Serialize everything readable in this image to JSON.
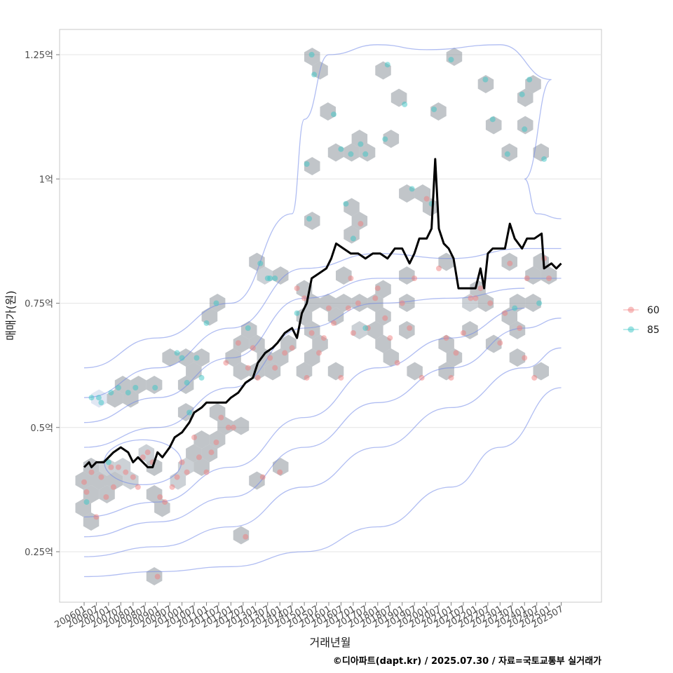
{
  "chart_data": {
    "type": "scatter",
    "xlabel": "거래년월",
    "ylabel": "매매가(원)",
    "caption": "©디아파트(dapt.kr) / 2025.07.30 / 자료=국토교통부 실거래가",
    "x_range": [
      2005.4,
      2026.5
    ],
    "y_unit": "억",
    "ylim": [
      0.15,
      1.35
    ],
    "y_ticks": [
      0.25,
      0.5,
      0.75,
      1.0,
      1.25
    ],
    "y_tick_labels": [
      "0.25억",
      "0.5억",
      "0.75억",
      "1억",
      "1.25억"
    ],
    "x_tick_labels": [
      "200601",
      "200607",
      "200701",
      "200707",
      "200801",
      "200807",
      "200901",
      "200907",
      "201001",
      "201007",
      "201101",
      "201107",
      "201201",
      "201207",
      "201301",
      "201307",
      "201401",
      "201407",
      "201501",
      "201507",
      "201601",
      "201607",
      "201701",
      "201707",
      "201801",
      "201807",
      "201901",
      "201907",
      "202001",
      "202007",
      "202101",
      "202107",
      "202201",
      "202207",
      "202301",
      "202307",
      "202401",
      "202407",
      "202501",
      "202507"
    ],
    "legend": {
      "placement": "right",
      "entries": [
        "60",
        "85"
      ]
    },
    "colors": {
      "60": "#f08080",
      "85": "#3cc6c6",
      "median_line": "#000000",
      "contour": "#6f86e8",
      "hexbin": "#8e969c"
    },
    "series": [
      {
        "name": "60",
        "points": [
          [
            2006.0,
            0.39
          ],
          [
            2006.1,
            0.37
          ],
          [
            2006.3,
            0.41
          ],
          [
            2006.5,
            0.32
          ],
          [
            2006.7,
            0.4
          ],
          [
            2006.9,
            0.36
          ],
          [
            2007.1,
            0.42
          ],
          [
            2007.2,
            0.38
          ],
          [
            2007.4,
            0.42
          ],
          [
            2007.7,
            0.41
          ],
          [
            2008.0,
            0.4
          ],
          [
            2008.2,
            0.38
          ],
          [
            2008.4,
            0.44
          ],
          [
            2008.6,
            0.45
          ],
          [
            2008.8,
            0.43
          ],
          [
            2009.0,
            0.2
          ],
          [
            2009.1,
            0.36
          ],
          [
            2009.3,
            0.35
          ],
          [
            2009.6,
            0.38
          ],
          [
            2009.8,
            0.4
          ],
          [
            2010.0,
            0.43
          ],
          [
            2010.2,
            0.41
          ],
          [
            2010.5,
            0.48
          ],
          [
            2010.7,
            0.44
          ],
          [
            2011.0,
            0.41
          ],
          [
            2011.2,
            0.45
          ],
          [
            2011.4,
            0.47
          ],
          [
            2011.6,
            0.52
          ],
          [
            2011.8,
            0.63
          ],
          [
            2011.9,
            0.5
          ],
          [
            2012.1,
            0.5
          ],
          [
            2012.3,
            0.67
          ],
          [
            2012.6,
            0.28
          ],
          [
            2012.7,
            0.62
          ],
          [
            2012.9,
            0.66
          ],
          [
            2013.1,
            0.6
          ],
          [
            2013.3,
            0.4
          ],
          [
            2013.6,
            0.64
          ],
          [
            2013.8,
            0.62
          ],
          [
            2014.0,
            0.41
          ],
          [
            2014.2,
            0.65
          ],
          [
            2014.5,
            0.66
          ],
          [
            2014.7,
            0.78
          ],
          [
            2015.0,
            0.76
          ],
          [
            2015.1,
            0.6
          ],
          [
            2015.3,
            0.69
          ],
          [
            2015.6,
            0.65
          ],
          [
            2015.8,
            0.68
          ],
          [
            2016.0,
            0.74
          ],
          [
            2016.2,
            0.71
          ],
          [
            2016.5,
            0.6
          ],
          [
            2016.8,
            0.74
          ],
          [
            2016.9,
            0.8
          ],
          [
            2017.0,
            0.69
          ],
          [
            2017.2,
            0.75
          ],
          [
            2017.3,
            0.91
          ],
          [
            2017.6,
            0.7
          ],
          [
            2017.9,
            0.76
          ],
          [
            2018.0,
            0.78
          ],
          [
            2018.3,
            0.72
          ],
          [
            2018.5,
            0.68
          ],
          [
            2018.8,
            0.63
          ],
          [
            2019.0,
            0.75
          ],
          [
            2019.3,
            0.7
          ],
          [
            2019.5,
            0.8
          ],
          [
            2019.8,
            0.6
          ],
          [
            2020.0,
            0.96
          ],
          [
            2020.5,
            0.82
          ],
          [
            2020.8,
            0.68
          ],
          [
            2021.0,
            0.6
          ],
          [
            2021.2,
            0.65
          ],
          [
            2021.5,
            0.69
          ],
          [
            2021.8,
            0.76
          ],
          [
            2022.0,
            0.76
          ],
          [
            2022.2,
            0.78
          ],
          [
            2022.6,
            0.75
          ],
          [
            2023.0,
            0.67
          ],
          [
            2023.2,
            0.73
          ],
          [
            2023.4,
            0.83
          ],
          [
            2023.8,
            0.7
          ],
          [
            2024.0,
            0.64
          ],
          [
            2024.1,
            0.8
          ],
          [
            2024.4,
            0.6
          ],
          [
            2024.8,
            0.84
          ],
          [
            2025.0,
            0.8
          ]
        ]
      },
      {
        "name": "85",
        "points": [
          [
            2006.1,
            0.35
          ],
          [
            2006.3,
            0.56
          ],
          [
            2006.6,
            0.56
          ],
          [
            2006.7,
            0.55
          ],
          [
            2007.0,
            0.43
          ],
          [
            2007.1,
            0.57
          ],
          [
            2007.4,
            0.58
          ],
          [
            2007.8,
            0.57
          ],
          [
            2008.1,
            0.58
          ],
          [
            2008.9,
            0.58
          ],
          [
            2009.8,
            0.65
          ],
          [
            2010.0,
            0.64
          ],
          [
            2010.2,
            0.59
          ],
          [
            2010.3,
            0.53
          ],
          [
            2010.6,
            0.64
          ],
          [
            2010.8,
            0.6
          ],
          [
            2011.0,
            0.71
          ],
          [
            2011.4,
            0.75
          ],
          [
            2012.7,
            0.7
          ],
          [
            2013.2,
            0.83
          ],
          [
            2013.5,
            0.8
          ],
          [
            2013.6,
            0.8
          ],
          [
            2013.8,
            0.8
          ],
          [
            2014.7,
            0.73
          ],
          [
            2015.1,
            1.03
          ],
          [
            2015.2,
            0.92
          ],
          [
            2015.3,
            1.25
          ],
          [
            2015.4,
            1.21
          ],
          [
            2016.2,
            1.13
          ],
          [
            2016.5,
            1.06
          ],
          [
            2016.7,
            0.95
          ],
          [
            2016.9,
            1.05
          ],
          [
            2017.0,
            0.88
          ],
          [
            2017.3,
            1.07
          ],
          [
            2017.5,
            1.05
          ],
          [
            2017.5,
            0.7
          ],
          [
            2018.3,
            1.08
          ],
          [
            2018.4,
            1.23
          ],
          [
            2019.1,
            1.15
          ],
          [
            2019.4,
            0.98
          ],
          [
            2020.2,
            0.95
          ],
          [
            2020.3,
            1.14
          ],
          [
            2021.0,
            1.24
          ],
          [
            2022.4,
            1.2
          ],
          [
            2022.7,
            1.12
          ],
          [
            2023.3,
            1.05
          ],
          [
            2023.6,
            0.74
          ],
          [
            2023.9,
            1.17
          ],
          [
            2024.0,
            1.1
          ],
          [
            2024.2,
            1.2
          ],
          [
            2024.6,
            0.75
          ],
          [
            2024.8,
            1.04
          ]
        ]
      },
      {
        "name": "median",
        "style": "line",
        "points": [
          [
            2006.0,
            0.42
          ],
          [
            2006.2,
            0.43
          ],
          [
            2006.3,
            0.42
          ],
          [
            2006.5,
            0.43
          ],
          [
            2006.8,
            0.43
          ],
          [
            2007.0,
            0.44
          ],
          [
            2007.2,
            0.45
          ],
          [
            2007.5,
            0.46
          ],
          [
            2007.8,
            0.45
          ],
          [
            2008.0,
            0.43
          ],
          [
            2008.2,
            0.44
          ],
          [
            2008.4,
            0.43
          ],
          [
            2008.6,
            0.42
          ],
          [
            2008.8,
            0.42
          ],
          [
            2009.0,
            0.45
          ],
          [
            2009.2,
            0.44
          ],
          [
            2009.5,
            0.46
          ],
          [
            2009.7,
            0.48
          ],
          [
            2010.0,
            0.49
          ],
          [
            2010.3,
            0.51
          ],
          [
            2010.5,
            0.53
          ],
          [
            2010.8,
            0.54
          ],
          [
            2011.0,
            0.55
          ],
          [
            2011.2,
            0.55
          ],
          [
            2011.5,
            0.55
          ],
          [
            2011.8,
            0.55
          ],
          [
            2012.0,
            0.56
          ],
          [
            2012.3,
            0.57
          ],
          [
            2012.6,
            0.59
          ],
          [
            2012.9,
            0.6
          ],
          [
            2013.1,
            0.63
          ],
          [
            2013.4,
            0.65
          ],
          [
            2013.7,
            0.66
          ],
          [
            2013.9,
            0.67
          ],
          [
            2014.2,
            0.69
          ],
          [
            2014.5,
            0.7
          ],
          [
            2014.7,
            0.68
          ],
          [
            2014.9,
            0.73
          ],
          [
            2015.1,
            0.75
          ],
          [
            2015.3,
            0.8
          ],
          [
            2015.6,
            0.81
          ],
          [
            2015.9,
            0.82
          ],
          [
            2016.1,
            0.84
          ],
          [
            2016.3,
            0.87
          ],
          [
            2016.6,
            0.86
          ],
          [
            2016.9,
            0.85
          ],
          [
            2017.2,
            0.85
          ],
          [
            2017.5,
            0.84
          ],
          [
            2017.8,
            0.85
          ],
          [
            2018.1,
            0.85
          ],
          [
            2018.4,
            0.84
          ],
          [
            2018.7,
            0.86
          ],
          [
            2019.0,
            0.86
          ],
          [
            2019.3,
            0.83
          ],
          [
            2019.5,
            0.85
          ],
          [
            2019.7,
            0.88
          ],
          [
            2020.0,
            0.88
          ],
          [
            2020.2,
            0.9
          ],
          [
            2020.35,
            1.04
          ],
          [
            2020.5,
            0.9
          ],
          [
            2020.7,
            0.87
          ],
          [
            2020.9,
            0.86
          ],
          [
            2021.1,
            0.84
          ],
          [
            2021.3,
            0.78
          ],
          [
            2021.7,
            0.78
          ],
          [
            2022.0,
            0.78
          ],
          [
            2022.2,
            0.82
          ],
          [
            2022.35,
            0.78
          ],
          [
            2022.5,
            0.85
          ],
          [
            2022.7,
            0.86
          ],
          [
            2023.0,
            0.86
          ],
          [
            2023.2,
            0.86
          ],
          [
            2023.4,
            0.91
          ],
          [
            2023.6,
            0.88
          ],
          [
            2023.9,
            0.86
          ],
          [
            2024.1,
            0.88
          ],
          [
            2024.4,
            0.88
          ],
          [
            2024.7,
            0.89
          ],
          [
            2024.8,
            0.82
          ],
          [
            2025.1,
            0.83
          ],
          [
            2025.3,
            0.82
          ],
          [
            2025.5,
            0.83
          ]
        ]
      }
    ]
  }
}
